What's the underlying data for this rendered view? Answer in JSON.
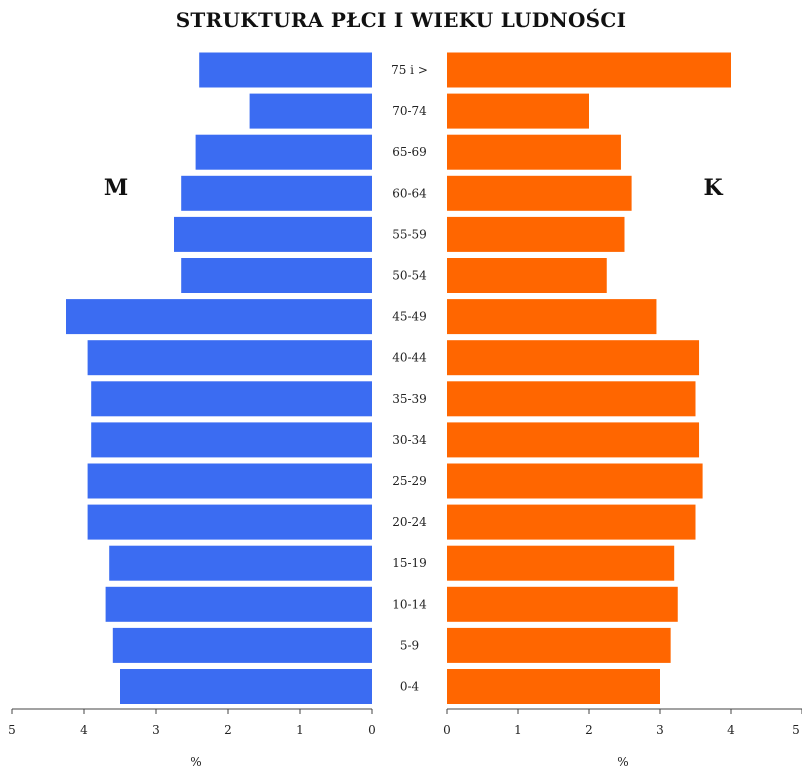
{
  "chart_data": {
    "type": "bar",
    "orientation": "horizontal",
    "layout": "population-pyramid",
    "title": "STRUKTURA PŁCI I WIEKU LUDNOŚCI",
    "categories": [
      "0-4",
      "5-9",
      "10-14",
      "15-19",
      "20-24",
      "25-29",
      "30-34",
      "35-39",
      "40-44",
      "45-49",
      "50-54",
      "55-59",
      "60-64",
      "65-69",
      "70-74",
      "75 i >"
    ],
    "series": [
      {
        "name": "M",
        "color": "#3b6cf2",
        "values": [
          3.5,
          3.6,
          3.7,
          3.65,
          3.95,
          3.95,
          3.9,
          3.9,
          3.95,
          4.25,
          2.65,
          2.75,
          2.65,
          2.45,
          1.7,
          2.4
        ]
      },
      {
        "name": "K",
        "color": "#ff6600",
        "values": [
          3.0,
          3.15,
          3.25,
          3.2,
          3.5,
          3.6,
          3.55,
          3.5,
          3.55,
          2.95,
          2.25,
          2.5,
          2.6,
          2.45,
          2.0,
          4.0
        ]
      }
    ],
    "xlim": [
      0,
      5
    ],
    "xticks": [
      "0",
      "1",
      "2",
      "3",
      "4",
      "5"
    ],
    "xlabel_left": "%",
    "xlabel_right": "%",
    "grid": false,
    "legend": "none"
  }
}
